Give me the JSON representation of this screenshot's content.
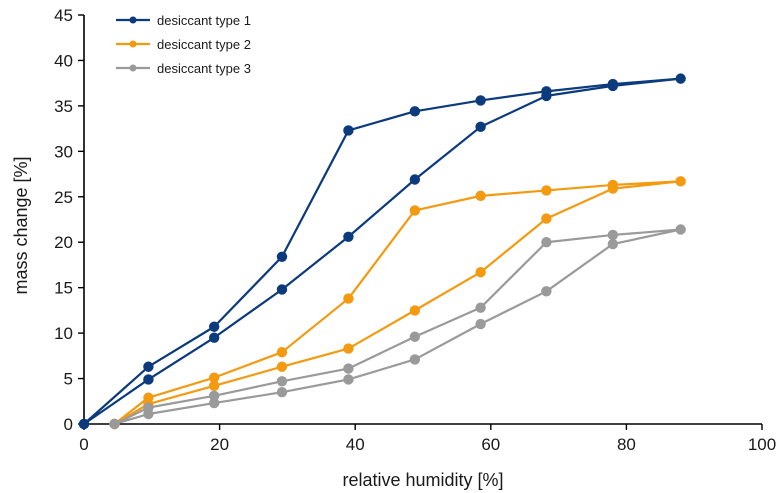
{
  "chart_data": {
    "type": "line",
    "title": "",
    "xlabel": "relative humidity [%]",
    "ylabel": "mass change [%]",
    "xlim": [
      0,
      100
    ],
    "ylim": [
      0,
      45
    ],
    "xticks": [
      0,
      20,
      40,
      60,
      80,
      100
    ],
    "yticks": [
      0,
      5,
      10,
      15,
      20,
      25,
      30,
      35,
      40,
      45
    ],
    "grid": false,
    "legend_position": "top-left",
    "series": [
      {
        "name": "desiccant type 1",
        "color": "#0b3b7c",
        "x": [
          0,
          9.5,
          19.2,
          29.2,
          39.0,
          48.8,
          58.5,
          68.2,
          78.0,
          88.0,
          78.0,
          68.2,
          58.5,
          48.8,
          39.0,
          29.2,
          19.2,
          9.5,
          0
        ],
        "y": [
          0,
          4.9,
          9.5,
          14.8,
          20.6,
          26.9,
          32.7,
          36.1,
          37.2,
          38.0,
          37.4,
          36.6,
          35.6,
          34.4,
          32.3,
          18.4,
          10.7,
          6.3,
          0
        ]
      },
      {
        "name": "desiccant type 2",
        "color": "#f39a10",
        "x": [
          4.5,
          9.5,
          19.2,
          29.2,
          39.0,
          48.8,
          58.5,
          68.2,
          78.0,
          88.0,
          78.0,
          68.2,
          58.5,
          48.8,
          39.0,
          29.2,
          19.2,
          9.5,
          4.5
        ],
        "y": [
          0,
          2.2,
          4.2,
          6.3,
          8.3,
          12.5,
          16.7,
          22.6,
          25.9,
          26.7,
          26.3,
          25.7,
          25.1,
          23.5,
          13.8,
          7.9,
          5.1,
          2.9,
          0
        ]
      },
      {
        "name": "desiccant type 3",
        "color": "#9a9a9a",
        "x": [
          4.5,
          9.5,
          19.2,
          29.2,
          39.0,
          48.8,
          58.5,
          68.2,
          78.0,
          88.0,
          78.0,
          68.2,
          58.5,
          48.8,
          39.0,
          29.2,
          19.2,
          9.5,
          4.5
        ],
        "y": [
          0,
          1.1,
          2.3,
          3.5,
          4.9,
          7.1,
          11.0,
          14.6,
          19.8,
          21.4,
          20.8,
          20.0,
          12.8,
          9.6,
          6.1,
          4.7,
          3.1,
          1.8,
          0
        ]
      }
    ]
  }
}
